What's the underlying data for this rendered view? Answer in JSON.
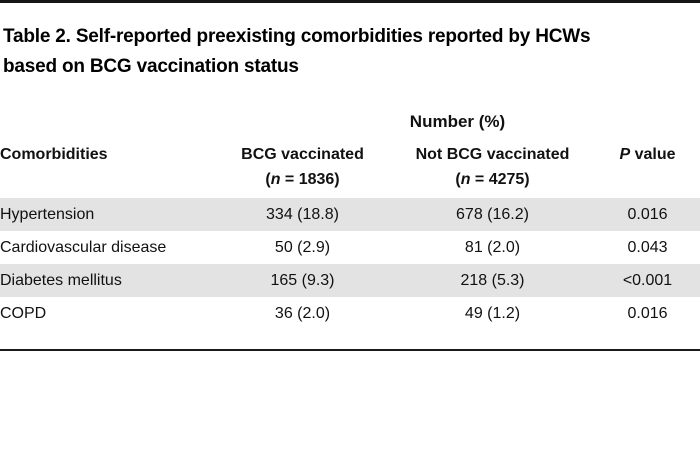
{
  "table": {
    "title_line1": "Table 2. Self-reported preexisting comorbidities reported by HCWs",
    "title_line2": "based on BCG vaccination status",
    "spanning_header": "Number (%)",
    "columns": {
      "comorbidities": "Comorbidities",
      "bcg": {
        "label": "BCG vaccinated",
        "n_open": "(",
        "n": "n",
        "n_rest": " = 1836)"
      },
      "not_bcg": {
        "label": "Not BCG vaccinated",
        "n_open": "(",
        "n": "n",
        "n_rest": " = 4275)"
      },
      "p": {
        "italic": "P",
        "rest": " value"
      }
    },
    "rows": [
      {
        "label": "Hypertension",
        "bcg": "334 (18.8)",
        "not_bcg": "678 (16.2)",
        "p": "0.016"
      },
      {
        "label": "Cardiovascular disease",
        "bcg": "50 (2.9)",
        "not_bcg": "81 (2.0)",
        "p": "0.043"
      },
      {
        "label": "Diabetes mellitus",
        "bcg": "165 (9.3)",
        "not_bcg": "218 (5.3)",
        "p": "<0.001"
      },
      {
        "label": "COPD",
        "bcg": "36 (2.0)",
        "not_bcg": "49 (1.2)",
        "p": "0.016"
      }
    ],
    "colors": {
      "zebra_row": "#e3e3e3",
      "rule": "#161616",
      "text": "#111111"
    }
  }
}
